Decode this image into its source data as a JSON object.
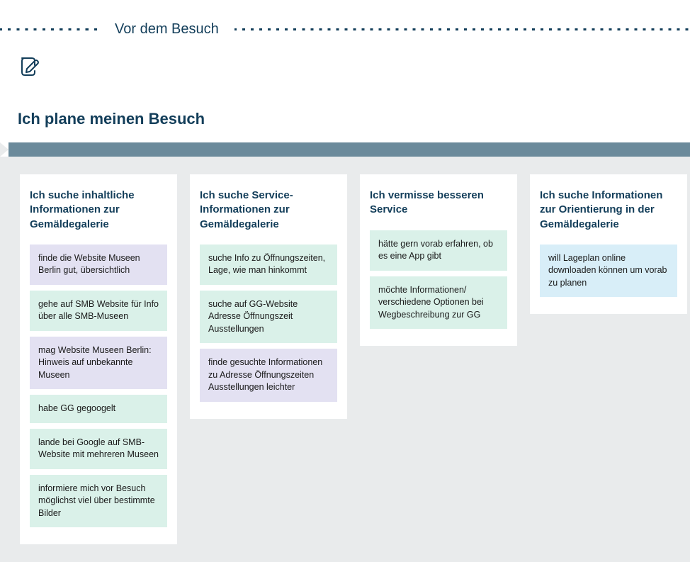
{
  "colors": {
    "primary_text": "#133e5a",
    "arrow_bar": "#6b8a9b",
    "panel_bg": "#e9ebec",
    "card_purple": "#e3e1f2",
    "card_green": "#daf1e9",
    "card_blue": "#d8eef8"
  },
  "header": {
    "phase_title": "Vor dem Besuch"
  },
  "plan_title": "Ich plane meinen Besuch",
  "columns": [
    {
      "title": "Ich suche inhaltliche Informationen zur Gemäldegalerie",
      "cards": [
        {
          "text": "finde die Website Museen Berlin gut, übersichtlich",
          "color": "card_purple"
        },
        {
          "text": "gehe auf SMB Website für Info über alle SMB-Museen",
          "color": "card_green"
        },
        {
          "text": "mag Website Museen Berlin: Hinweis auf unbekannte Museen",
          "color": "card_purple"
        },
        {
          "text": "habe GG gegoogelt",
          "color": "card_green"
        },
        {
          "text": "lande bei Google auf SMB-Website mit mehreren Museen",
          "color": "card_green"
        },
        {
          "text": "informiere mich vor Besuch möglichst viel über bestimmte Bilder",
          "color": "card_green"
        }
      ]
    },
    {
      "title": "Ich suche Service-Informationen zur Gemäldegalerie",
      "cards": [
        {
          "text": "suche Info zu Öffnungszeiten, Lage, wie man hinkommt",
          "color": "card_green"
        },
        {
          "text": "suche auf GG-Website Adresse Öffnungszeit Ausstellungen",
          "color": "card_green"
        },
        {
          "text": "finde gesuchte Informationen zu Adresse Öffnungszeiten Ausstellungen leichter",
          "color": "card_purple"
        }
      ]
    },
    {
      "title": "Ich vermisse besseren Service",
      "cards": [
        {
          "text": "hätte gern vorab erfahren, ob es eine App gibt",
          "color": "card_green"
        },
        {
          "text": "möchte Informationen/ verschiedene Optionen bei Wegbeschreibung zur GG",
          "color": "card_green"
        }
      ]
    },
    {
      "title": "Ich suche Informationen zur Orientierung in der Gemäldegalerie",
      "cards": [
        {
          "text": "will Lageplan online downloaden können um vorab zu planen",
          "color": "card_blue"
        }
      ]
    }
  ]
}
